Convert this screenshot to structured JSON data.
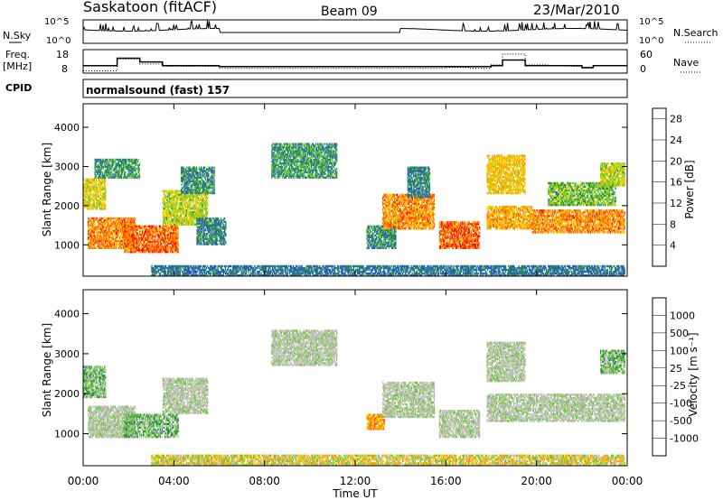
{
  "header": {
    "station": "Saskatoon (fitACF)",
    "beam": "Beam 09",
    "date": "23/Mar/2010"
  },
  "noise_panel": {
    "left_label": "N.Sky",
    "left_ticks": [
      "10^5",
      "10^0"
    ],
    "right_ticks": [
      "10^5",
      "10^0"
    ],
    "right_label": "N.Search"
  },
  "freq_panel": {
    "left_label_line1": "Freq.",
    "left_label_line2": "[MHz]",
    "left_ticks": [
      "18",
      "8"
    ],
    "right_ticks": [
      "60",
      "0"
    ],
    "right_label": "Nave",
    "freq_steps": [
      [
        0,
        11
      ],
      [
        1.2,
        11
      ],
      [
        1.5,
        15
      ],
      [
        2.5,
        13
      ],
      [
        3.5,
        11
      ],
      [
        6,
        10.5
      ],
      [
        8,
        10.5
      ],
      [
        9.5,
        10.5
      ],
      [
        17,
        10.5
      ],
      [
        18,
        11
      ],
      [
        18.5,
        14
      ],
      [
        19.5,
        11
      ],
      [
        21,
        11
      ],
      [
        22,
        10
      ],
      [
        22.5,
        11
      ],
      [
        24,
        11
      ]
    ],
    "nave_steps": [
      [
        0,
        4
      ],
      [
        1.2,
        4
      ],
      [
        1.5,
        40
      ],
      [
        2.5,
        25
      ],
      [
        3.5,
        18
      ],
      [
        6,
        12
      ],
      [
        10,
        12
      ],
      [
        14,
        12
      ],
      [
        16,
        14
      ],
      [
        17,
        12
      ],
      [
        18,
        22
      ],
      [
        18.5,
        55
      ],
      [
        19.5,
        22
      ],
      [
        20.5,
        20
      ],
      [
        21.5,
        18
      ],
      [
        22,
        12
      ],
      [
        22.5,
        20
      ],
      [
        24,
        20
      ]
    ]
  },
  "cpid": {
    "label": "CPID",
    "value": "normalsound (fast) 157"
  },
  "chart_data": [
    {
      "type": "heatmap",
      "title": "",
      "xlabel": "Time UT",
      "ylabel": "Slant Range [km]",
      "xlim": [
        0,
        24
      ],
      "ylim": [
        200,
        4600
      ],
      "x_ticks": [
        "00:00",
        "04:00",
        "08:00",
        "12:00",
        "16:00",
        "20:00",
        "00:00"
      ],
      "y_ticks": [
        "1000",
        "2000",
        "3000",
        "4000"
      ],
      "colorbar": {
        "label": "Power [dB]",
        "ticks": [
          "4",
          "8",
          "12",
          "16",
          "20",
          "24",
          "28"
        ],
        "range": [
          0,
          30
        ],
        "colors": [
          "#0000ff",
          "#2255cc",
          "#3377aa",
          "#2a8a4a",
          "#66cc33",
          "#cccc00",
          "#ffcc00",
          "#ff9900",
          "#ff5500",
          "#ff0000"
        ]
      },
      "regions": [
        {
          "t0": 0.0,
          "t1": 1.0,
          "r0": 1900,
          "r1": 2700,
          "v": 18
        },
        {
          "t0": 0.2,
          "t1": 2.3,
          "r0": 900,
          "r1": 1700,
          "v": 24
        },
        {
          "t0": 1.8,
          "t1": 4.2,
          "r0": 800,
          "r1": 1500,
          "v": 26
        },
        {
          "t0": 3.5,
          "t1": 5.5,
          "r0": 1500,
          "r1": 2400,
          "v": 16
        },
        {
          "t0": 4.3,
          "t1": 5.8,
          "r0": 2300,
          "r1": 3000,
          "v": 9
        },
        {
          "t0": 5.0,
          "t1": 6.3,
          "r0": 1000,
          "r1": 1700,
          "v": 8
        },
        {
          "t0": 0.5,
          "t1": 2.5,
          "r0": 2700,
          "r1": 3200,
          "v": 10
        },
        {
          "t0": 8.3,
          "t1": 11.2,
          "r0": 2700,
          "r1": 3600,
          "v": 10
        },
        {
          "t0": 12.5,
          "t1": 13.8,
          "r0": 900,
          "r1": 1500,
          "v": 9
        },
        {
          "t0": 13.2,
          "t1": 15.5,
          "r0": 1400,
          "r1": 2300,
          "v": 24
        },
        {
          "t0": 15.7,
          "t1": 17.5,
          "r0": 900,
          "r1": 1600,
          "v": 26
        },
        {
          "t0": 14.3,
          "t1": 15.3,
          "r0": 2200,
          "r1": 3000,
          "v": 8
        },
        {
          "t0": 17.8,
          "t1": 19.8,
          "r0": 1400,
          "r1": 2000,
          "v": 22
        },
        {
          "t0": 19.8,
          "t1": 23.9,
          "r0": 1300,
          "r1": 1900,
          "v": 24
        },
        {
          "t0": 17.8,
          "t1": 19.5,
          "r0": 2300,
          "r1": 3300,
          "v": 20
        },
        {
          "t0": 20.5,
          "t1": 23.5,
          "r0": 2000,
          "r1": 2600,
          "v": 13
        },
        {
          "t0": 22.8,
          "t1": 23.9,
          "r0": 2500,
          "r1": 3100,
          "v": 16
        },
        {
          "t0": 3.0,
          "t1": 23.9,
          "r0": 200,
          "r1": 480,
          "v": 7
        }
      ]
    },
    {
      "type": "heatmap",
      "title": "",
      "xlabel": "Time UT",
      "ylabel": "Slant Range [km]",
      "xlim": [
        0,
        24
      ],
      "ylim": [
        200,
        4600
      ],
      "x_ticks": [
        "00:00",
        "04:00",
        "08:00",
        "12:00",
        "16:00",
        "20:00",
        "00:00"
      ],
      "y_ticks": [
        "1000",
        "2000",
        "3000",
        "4000"
      ],
      "colorbar": {
        "label": "Velocity [m s⁻¹]",
        "ticks": [
          "1000",
          "500",
          "100",
          "25",
          "-25",
          "-100",
          "-500",
          "-1000"
        ],
        "colors": [
          "#0000cc",
          "#2244aa",
          "#2a8a4a",
          "#66cc33",
          "#c0c0b8",
          "#ffcc00",
          "#ff9900",
          "#ff5500",
          "#ff0000"
        ]
      },
      "regions": [
        {
          "t0": 0.0,
          "t1": 1.0,
          "r0": 1900,
          "r1": 2700,
          "c": "green"
        },
        {
          "t0": 0.2,
          "t1": 2.3,
          "r0": 900,
          "r1": 1700,
          "c": "grey"
        },
        {
          "t0": 1.8,
          "t1": 4.2,
          "r0": 900,
          "r1": 1500,
          "c": "green"
        },
        {
          "t0": 3.5,
          "t1": 5.5,
          "r0": 1500,
          "r1": 2400,
          "c": "grey"
        },
        {
          "t0": 8.3,
          "t1": 11.2,
          "r0": 2700,
          "r1": 3600,
          "c": "grey"
        },
        {
          "t0": 12.5,
          "t1": 13.3,
          "r0": 1100,
          "r1": 1500,
          "c": "orange"
        },
        {
          "t0": 13.2,
          "t1": 15.5,
          "r0": 1400,
          "r1": 2300,
          "c": "grey"
        },
        {
          "t0": 15.7,
          "t1": 17.5,
          "r0": 900,
          "r1": 1600,
          "c": "grey"
        },
        {
          "t0": 17.8,
          "t1": 23.9,
          "r0": 1300,
          "r1": 2000,
          "c": "grey"
        },
        {
          "t0": 17.8,
          "t1": 19.5,
          "r0": 2300,
          "r1": 3300,
          "c": "grey"
        },
        {
          "t0": 22.8,
          "t1": 23.9,
          "r0": 2500,
          "r1": 3100,
          "c": "green"
        },
        {
          "t0": 3.0,
          "t1": 23.9,
          "r0": 200,
          "r1": 480,
          "c": "yellow"
        }
      ]
    }
  ]
}
